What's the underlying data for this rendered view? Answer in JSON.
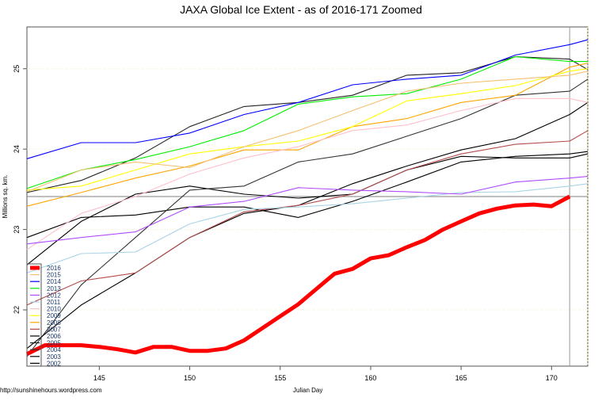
{
  "chart_data": {
    "type": "line",
    "title": "JAXA Global Ice Extent - as of 2016-171 Zoomed",
    "xlabel": "Julian Day",
    "ylabel": "Millions sq. km.",
    "source": "http://sunshinehours.wordpress.com",
    "xlim": [
      141,
      172
    ],
    "ylim": [
      21.3,
      25.52
    ],
    "xticks": [
      145,
      150,
      155,
      160,
      165,
      170
    ],
    "yticks": [
      22,
      23,
      24,
      25
    ],
    "current_day_line": 171,
    "reference_level": 23.41,
    "legend_position": "bottom-left",
    "grid": false,
    "x": [
      141,
      144,
      147,
      150,
      153,
      156,
      159,
      162,
      165,
      168,
      171,
      172
    ],
    "series": [
      {
        "name": "2016",
        "color": "#ff0000",
        "x": [
          141,
          142,
          143,
          144,
          145,
          146,
          147,
          148,
          149,
          150,
          151,
          152,
          153,
          154,
          155,
          156,
          157,
          158,
          159,
          160,
          161,
          162,
          163,
          164,
          165,
          166,
          167,
          168,
          169,
          170,
          171
        ],
        "values": [
          21.45,
          21.56,
          21.56,
          21.56,
          21.54,
          21.51,
          21.47,
          21.54,
          21.54,
          21.49,
          21.49,
          21.52,
          21.62,
          21.77,
          21.92,
          22.07,
          22.26,
          22.45,
          22.51,
          22.64,
          22.68,
          22.78,
          22.87,
          23.0,
          23.1,
          23.2,
          23.26,
          23.3,
          23.31,
          23.29,
          23.41
        ]
      },
      {
        "name": "2015",
        "color": "#f5c070",
        "values": [
          23.47,
          23.74,
          23.84,
          23.77,
          24.03,
          24.23,
          24.48,
          24.72,
          24.82,
          24.87,
          24.92,
          24.97
        ]
      },
      {
        "name": "2014",
        "color": "#0000ff",
        "values": [
          23.88,
          24.08,
          24.08,
          24.2,
          24.43,
          24.58,
          24.8,
          24.87,
          24.92,
          25.17,
          25.3,
          25.36
        ]
      },
      {
        "name": "2013",
        "color": "#00ee00",
        "values": [
          23.51,
          23.74,
          23.87,
          24.03,
          24.23,
          24.56,
          24.65,
          24.69,
          24.87,
          25.15,
          25.09,
          25.09
        ]
      },
      {
        "name": "2012",
        "color": "#b04cff",
        "values": [
          22.82,
          22.9,
          22.97,
          23.28,
          23.35,
          23.52,
          23.49,
          23.47,
          23.44,
          23.59,
          23.64,
          23.66
        ]
      },
      {
        "name": "2011",
        "color": "#a8d4e6",
        "values": [
          22.46,
          22.7,
          22.72,
          23.07,
          23.25,
          23.28,
          23.32,
          23.39,
          23.46,
          23.47,
          23.54,
          23.57
        ]
      },
      {
        "name": "2010",
        "color": "#ffc0cb",
        "values": [
          22.75,
          23.2,
          23.41,
          23.69,
          23.89,
          24.03,
          24.23,
          24.3,
          24.48,
          24.63,
          24.63,
          24.58
        ]
      },
      {
        "name": "2009",
        "color": "#ffff00",
        "values": [
          23.49,
          23.54,
          23.74,
          23.94,
          24.03,
          24.1,
          24.28,
          24.6,
          24.69,
          24.79,
          24.97,
          25.0
        ]
      },
      {
        "name": "2008",
        "color": "#ffa500",
        "values": [
          23.29,
          23.46,
          23.64,
          23.79,
          23.99,
          23.99,
          24.28,
          24.38,
          24.58,
          24.67,
          25.02,
          25.07
        ]
      },
      {
        "name": "2007",
        "color": "#b44b4b",
        "values": [
          22.06,
          22.36,
          22.46,
          22.9,
          23.22,
          23.3,
          23.44,
          23.74,
          23.94,
          24.06,
          24.1,
          24.23
        ]
      },
      {
        "name": "2006",
        "color": "#000000",
        "values": [
          21.52,
          22.06,
          22.46,
          22.9,
          23.2,
          23.3,
          23.57,
          23.79,
          23.99,
          24.13,
          24.43,
          24.58
        ]
      },
      {
        "name": "2005",
        "color": "#222222",
        "values": [
          23.46,
          23.61,
          23.89,
          24.28,
          24.53,
          24.58,
          24.67,
          24.92,
          24.95,
          25.15,
          25.12,
          24.99
        ]
      },
      {
        "name": "2004",
        "color": "#333333",
        "values": [
          21.42,
          22.31,
          22.9,
          23.49,
          23.54,
          23.84,
          23.94,
          24.16,
          24.38,
          24.67,
          24.72,
          24.87
        ]
      },
      {
        "name": "2003",
        "color": "#000000",
        "values": [
          22.9,
          23.15,
          23.18,
          23.28,
          23.28,
          23.15,
          23.35,
          23.59,
          23.84,
          23.91,
          23.94,
          23.97
        ]
      },
      {
        "name": "2002",
        "color": "#000000",
        "values": [
          22.56,
          23.1,
          23.44,
          23.54,
          23.44,
          23.39,
          23.44,
          23.74,
          23.91,
          23.89,
          23.89,
          23.94
        ]
      }
    ]
  }
}
